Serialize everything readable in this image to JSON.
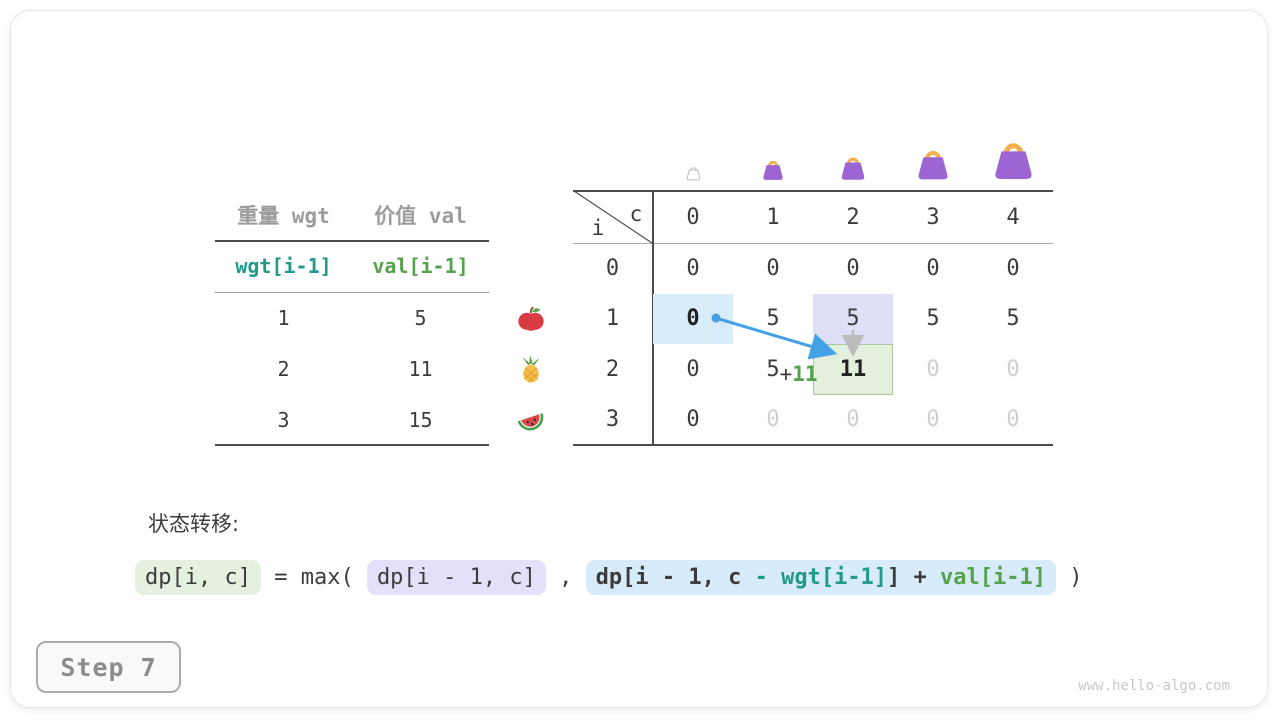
{
  "page": {
    "step_label": "Step 7",
    "footer": "www.hello-algo.com"
  },
  "items_table": {
    "col_headers": [
      "重量 wgt",
      "价值 val"
    ],
    "index_row": [
      "wgt[i-1]",
      "val[i-1]"
    ],
    "rows": [
      {
        "fruit": "apple",
        "wgt": "1",
        "val": "5"
      },
      {
        "fruit": "pineapple",
        "wgt": "2",
        "val": "11"
      },
      {
        "fruit": "watermelon",
        "wgt": "3",
        "val": "15"
      }
    ]
  },
  "dp_table": {
    "corner_col": "c",
    "corner_row": "i",
    "col_headers": [
      "0",
      "1",
      "2",
      "3",
      "4"
    ],
    "row_headers": [
      "0",
      "1",
      "2",
      "3"
    ],
    "bags": [
      {
        "col": 0,
        "size": 17,
        "empty": true
      },
      {
        "col": 1,
        "size": 24,
        "empty": false
      },
      {
        "col": 2,
        "size": 28,
        "empty": false
      },
      {
        "col": 3,
        "size": 36,
        "empty": false
      },
      {
        "col": 4,
        "size": 45,
        "empty": false
      }
    ],
    "cells": [
      [
        "0",
        "0",
        "0",
        "0",
        "0"
      ],
      [
        "0",
        "5",
        "5",
        "5",
        "5"
      ],
      [
        "0",
        "5",
        "11",
        "0",
        "0"
      ],
      [
        "0",
        "0",
        "0",
        "0",
        "0"
      ]
    ],
    "cell_styles": {
      "bold": [
        [
          1,
          0
        ],
        [
          2,
          2
        ]
      ],
      "dim": [
        [
          2,
          3
        ],
        [
          2,
          4
        ],
        [
          3,
          1
        ],
        [
          3,
          2
        ],
        [
          3,
          3
        ],
        [
          3,
          4
        ]
      ],
      "bg_blue": [
        [
          1,
          0
        ]
      ],
      "bg_lavender": [
        [
          1,
          2
        ]
      ],
      "bg_green": [
        [
          2,
          2
        ]
      ]
    },
    "annotation": {
      "plus": "+",
      "gain": "11"
    }
  },
  "transition": {
    "label": "状态转移:",
    "lhs": "dp[i, c]",
    "equals_max": " = max( ",
    "arg1": "dp[i - 1, c]",
    "comma": " , ",
    "arg2_parts": [
      {
        "text": "dp[i - 1, c ",
        "color": "dark"
      },
      {
        "text": "- wgt[i-1]",
        "color": "teal"
      },
      {
        "text": "] + ",
        "color": "dark"
      },
      {
        "text": "val[i-1]",
        "color": "green"
      }
    ],
    "close": " )"
  },
  "colors": {
    "dark_text": "#3c3c3c",
    "gray_text": "#9c9c9c",
    "dim_zero": "#cfcfcf",
    "teal": "#22998a",
    "green": "#55a14d",
    "arrow_blue": "#45a1e6",
    "arrow_gray": "#bcbcbc",
    "cell_blue_bg": "#d8ecfa",
    "cell_lavender_bg": "#e0dff8",
    "cell_green_bg": "#e4f0de",
    "cell_green_border": "#a5c99b",
    "bag_purple": "#9d64d3",
    "bag_handle": "#f2b04e"
  }
}
